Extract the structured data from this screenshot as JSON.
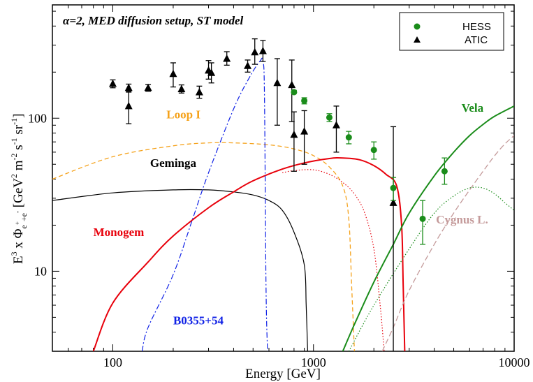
{
  "chart_data": {
    "type": "line",
    "annotation": "α=2, MED diffusion setup, ST model",
    "xlabel": "Energy [GeV]",
    "ylabel": {
      "main": "E",
      "exp": "3",
      "times": " x Φ",
      "sub": "e",
      "subsup1": "+",
      "subsup2": "+e",
      "subsup3": "-",
      "units_open": " [GeV",
      "u_exp1": "2",
      "u_m": " m",
      "u_exp2": "-2",
      "u_s": " s",
      "u_exp3": "-1",
      "u_sr": " sr",
      "u_exp4": "-1",
      "units_close": "]"
    },
    "xscale": "log",
    "yscale": "log",
    "xlim": [
      50,
      10000
    ],
    "ylim": [
      3,
      550
    ],
    "x_ticks": [
      {
        "value": 100,
        "label": "100"
      },
      {
        "value": 1000,
        "label": "1000"
      },
      {
        "value": 10000,
        "label": "10000"
      }
    ],
    "y_ticks": [
      {
        "value": 10,
        "label": "10"
      },
      {
        "value": 100,
        "label": "100"
      }
    ],
    "legend": {
      "position": "top-right",
      "entries": [
        {
          "label": "HESS",
          "marker": "circle",
          "color": "#1a8c1a"
        },
        {
          "label": "ATIC",
          "marker": "triangle",
          "color": "#000000"
        }
      ]
    },
    "series": [
      {
        "name": "Loop I",
        "label": "Loop I",
        "label_at": [
          225,
          100
        ],
        "label_anchor": "middle",
        "color": "#f5a21b",
        "dash": "6,4",
        "width": 1.3,
        "points": [
          [
            50,
            40
          ],
          [
            100,
            56
          ],
          [
            200,
            66
          ],
          [
            300,
            69
          ],
          [
            400,
            69
          ],
          [
            600,
            67
          ],
          [
            800,
            63
          ],
          [
            1000,
            57
          ],
          [
            1200,
            48
          ],
          [
            1400,
            36
          ],
          [
            1500,
            22
          ],
          [
            1550,
            8
          ],
          [
            1600,
            3
          ]
        ]
      },
      {
        "name": "Geminga",
        "label": "Geminga",
        "label_at": [
          200,
          48
        ],
        "label_anchor": "middle",
        "color": "#000000",
        "dash": "",
        "width": 1.2,
        "points": [
          [
            50,
            29
          ],
          [
            100,
            32.5
          ],
          [
            200,
            34
          ],
          [
            300,
            34
          ],
          [
            400,
            33
          ],
          [
            500,
            31.5
          ],
          [
            600,
            29
          ],
          [
            700,
            25
          ],
          [
            800,
            18
          ],
          [
            900,
            11
          ],
          [
            920,
            6
          ],
          [
            935,
            3
          ]
        ]
      },
      {
        "name": "Monogem",
        "label": "Monogem",
        "label_at": [
          80,
          17
        ],
        "label_anchor": "start",
        "color": "#e8000b",
        "dash": "",
        "width": 2.0,
        "points": [
          [
            80,
            3
          ],
          [
            100,
            6.2
          ],
          [
            150,
            11.5
          ],
          [
            200,
            17
          ],
          [
            300,
            26
          ],
          [
            400,
            33
          ],
          [
            500,
            39
          ],
          [
            700,
            46.5
          ],
          [
            900,
            51
          ],
          [
            1200,
            54.5
          ],
          [
            1400,
            55
          ],
          [
            1700,
            53.5
          ],
          [
            2000,
            49
          ],
          [
            2300,
            43
          ],
          [
            2600,
            36
          ],
          [
            2750,
            20
          ],
          [
            2800,
            8
          ],
          [
            2850,
            3
          ]
        ]
      },
      {
        "name": "Monogem (dotted)",
        "color": "#e8000b",
        "dash": "1.5,2.5",
        "width": 1.2,
        "points": [
          [
            700,
            44
          ],
          [
            800,
            45.5
          ],
          [
            1000,
            46
          ],
          [
            1200,
            43
          ],
          [
            1400,
            38
          ],
          [
            1600,
            32
          ],
          [
            1800,
            24
          ],
          [
            2000,
            14
          ],
          [
            2150,
            6
          ],
          [
            2250,
            3
          ]
        ]
      },
      {
        "name": "B0355+54",
        "label": "B0355+54",
        "label_at": [
          200,
          4.5
        ],
        "label_anchor": "start",
        "color": "#1022e6",
        "dash": "8,3,2,3",
        "width": 1.2,
        "points": [
          [
            140,
            3
          ],
          [
            150,
            4.3
          ],
          [
            200,
            9.5
          ],
          [
            250,
            22
          ],
          [
            300,
            44
          ],
          [
            400,
            115
          ],
          [
            480,
            185
          ],
          [
            540,
            235
          ],
          [
            560,
            235
          ],
          [
            570,
            140
          ],
          [
            580,
            8
          ],
          [
            590,
            3
          ]
        ]
      },
      {
        "name": "Vela",
        "label": "Vela",
        "label_at": [
          6200,
          110
        ],
        "label_anchor": "middle",
        "color": "#1a8c1a",
        "dash": "",
        "width": 2.0,
        "points": [
          [
            1400,
            3
          ],
          [
            1600,
            4.5
          ],
          [
            2000,
            8.5
          ],
          [
            2500,
            15
          ],
          [
            3000,
            24
          ],
          [
            4000,
            42
          ],
          [
            5000,
            60
          ],
          [
            6000,
            77
          ],
          [
            7000,
            91
          ],
          [
            8000,
            103
          ],
          [
            10000,
            120
          ]
        ]
      },
      {
        "name": "Vela (dotted)",
        "color": "#1a8c1a",
        "dash": "1.5,2.5",
        "width": 1.2,
        "points": [
          [
            1500,
            3
          ],
          [
            2000,
            6
          ],
          [
            3000,
            14
          ],
          [
            4000,
            24
          ],
          [
            5000,
            31
          ],
          [
            6000,
            35
          ],
          [
            7000,
            35
          ],
          [
            8000,
            32
          ],
          [
            9000,
            28
          ],
          [
            10000,
            25
          ]
        ]
      },
      {
        "name": "Cygnus L.",
        "label": "Cygnus L.",
        "label_at": [
          5500,
          20.5
        ],
        "label_anchor": "middle",
        "color": "#c49a9a",
        "dash": "8,4",
        "width": 1.3,
        "points": [
          [
            2200,
            3
          ],
          [
            2500,
            4.3
          ],
          [
            3000,
            7.5
          ],
          [
            4000,
            15
          ],
          [
            5000,
            24
          ],
          [
            6000,
            34
          ],
          [
            7000,
            45
          ],
          [
            8000,
            57
          ],
          [
            9000,
            68
          ],
          [
            10000,
            77
          ]
        ]
      }
    ],
    "hess": {
      "name": "HESS",
      "color": "#1a8c1a",
      "points": [
        {
          "x": 800,
          "y": 148,
          "lo": 145,
          "hi": 152
        },
        {
          "x": 900,
          "y": 130,
          "lo": 124,
          "hi": 136
        },
        {
          "x": 1200,
          "y": 101,
          "lo": 95,
          "hi": 107
        },
        {
          "x": 1500,
          "y": 75,
          "lo": 68,
          "hi": 82
        },
        {
          "x": 2000,
          "y": 62,
          "lo": 54,
          "hi": 70
        },
        {
          "x": 2500,
          "y": 35,
          "lo": 29,
          "hi": 41
        },
        {
          "x": 3500,
          "y": 22,
          "lo": 15,
          "hi": 29
        },
        {
          "x": 4500,
          "y": 45,
          "lo": 37,
          "hi": 55
        }
      ]
    },
    "atic": {
      "name": "ATIC",
      "color": "#000000",
      "points": [
        {
          "x": 100,
          "y": 168,
          "lo": 158,
          "hi": 178
        },
        {
          "x": 120,
          "y": 158,
          "lo": 150,
          "hi": 167
        },
        {
          "x": 120,
          "y": 120,
          "lo": 92,
          "hi": 148
        },
        {
          "x": 150,
          "y": 158,
          "lo": 150,
          "hi": 166
        },
        {
          "x": 200,
          "y": 195,
          "lo": 160,
          "hi": 230
        },
        {
          "x": 220,
          "y": 155,
          "lo": 146,
          "hi": 165
        },
        {
          "x": 270,
          "y": 148,
          "lo": 135,
          "hi": 162
        },
        {
          "x": 300,
          "y": 205,
          "lo": 180,
          "hi": 238
        },
        {
          "x": 310,
          "y": 198,
          "lo": 170,
          "hi": 230
        },
        {
          "x": 370,
          "y": 245,
          "lo": 222,
          "hi": 272
        },
        {
          "x": 470,
          "y": 220,
          "lo": 200,
          "hi": 240
        },
        {
          "x": 510,
          "y": 270,
          "lo": 225,
          "hi": 330
        },
        {
          "x": 560,
          "y": 275,
          "lo": 235,
          "hi": 322
        },
        {
          "x": 660,
          "y": 170,
          "lo": 90,
          "hi": 245
        },
        {
          "x": 780,
          "y": 165,
          "lo": 95,
          "hi": 240
        },
        {
          "x": 800,
          "y": 78,
          "lo": 45,
          "hi": 110
        },
        {
          "x": 900,
          "y": 82,
          "lo": 50,
          "hi": 112
        },
        {
          "x": 1300,
          "y": 90,
          "lo": 60,
          "hi": 120
        },
        {
          "x": 2500,
          "y": 28,
          "lo": 3,
          "hi": 88
        }
      ]
    }
  }
}
